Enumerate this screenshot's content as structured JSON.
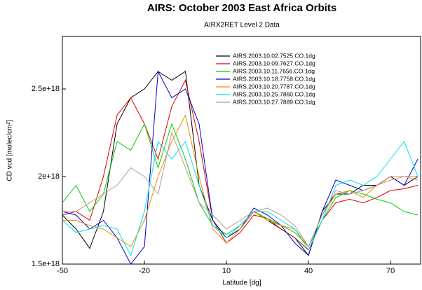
{
  "chart_data": {
    "type": "line",
    "title": "AIRS: October 2003 East Africa Orbits",
    "subtitle": "AIRX2RET Level 2 Data",
    "x_label": "Latitude [dg]",
    "y_label": "CD vcd [molec/cm²]",
    "xlim": [
      -50,
      81
    ],
    "ylim": [
      1.5e+18,
      2.8e+18
    ],
    "xticks": [
      -50,
      -20,
      10,
      40,
      70
    ],
    "yticks": [
      {
        "value": 1.5e+18,
        "label": "1.5e+18"
      },
      {
        "value": 2e+18,
        "label": "2e+18"
      },
      {
        "value": 2.5e+18,
        "label": "2.5e+18"
      }
    ],
    "x": [
      -50,
      -45,
      -40,
      -35,
      -30,
      -25,
      -20,
      -15,
      -10,
      -5,
      0,
      5,
      10,
      15,
      20,
      25,
      30,
      35,
      40,
      45,
      50,
      55,
      60,
      65,
      70,
      75,
      80
    ],
    "series": [
      {
        "name": "AIRS.2003.10.02.7525.CO.1dg",
        "color": "#000000",
        "values": [
          1.78e+18,
          1.7e+18,
          1.59e+18,
          1.8e+18,
          2.3e+18,
          2.45e+18,
          2.5e+18,
          2.6e+18,
          2.55e+18,
          2.6e+18,
          1.95e+18,
          1.75e+18,
          1.65e+18,
          1.7e+18,
          1.8e+18,
          1.75e+18,
          1.7e+18,
          1.65e+18,
          1.55e+18,
          1.8e+18,
          1.9e+18,
          1.9e+18,
          1.95e+18,
          1.95e+18,
          2e+18,
          1.95e+18,
          2e+18
        ]
      },
      {
        "name": "AIRS.2003.10.09.7627.CO.1dg",
        "color": "#e00000",
        "values": [
          1.78e+18,
          1.8e+18,
          1.75e+18,
          2e+18,
          2.35e+18,
          2.45e+18,
          2.3e+18,
          2.1e+18,
          2.4e+18,
          2.55e+18,
          2.2e+18,
          1.75e+18,
          1.62e+18,
          1.68e+18,
          1.78e+18,
          1.76e+18,
          1.7e+18,
          1.65e+18,
          1.58e+18,
          1.75e+18,
          1.85e+18,
          1.87e+18,
          1.85e+18,
          1.88e+18,
          1.92e+18,
          1.93e+18,
          1.95e+18
        ]
      },
      {
        "name": "AIRS.2003.10.11.7656.CO.1dg",
        "color": "#00d000",
        "values": [
          1.85e+18,
          1.95e+18,
          1.8e+18,
          1.9e+18,
          2.2e+18,
          2.15e+18,
          2.3e+18,
          2.05e+18,
          2.3e+18,
          2.1e+18,
          1.85e+18,
          1.72e+18,
          1.67e+18,
          1.72e+18,
          1.8e+18,
          1.76e+18,
          1.72e+18,
          1.68e+18,
          1.6e+18,
          1.75e+18,
          1.88e+18,
          1.92e+18,
          1.9e+18,
          1.87e+18,
          1.85e+18,
          1.8e+18,
          1.78e+18
        ]
      },
      {
        "name": "AIRS.2003.10.18.7758.CO.1dg",
        "color": "#0000d0",
        "values": [
          1.8e+18,
          1.78e+18,
          1.7e+18,
          1.75e+18,
          1.65e+18,
          1.5e+18,
          1.6e+18,
          2.6e+18,
          2.45e+18,
          2.5e+18,
          2.3e+18,
          1.75e+18,
          1.65e+18,
          1.7e+18,
          1.82e+18,
          1.78e+18,
          1.72e+18,
          1.62e+18,
          1.55e+18,
          1.8e+18,
          1.98e+18,
          1.95e+18,
          1.92e+18,
          1.95e+18,
          2e+18,
          1.95e+18,
          2.1e+18
        ]
      },
      {
        "name": "AIRS.2003.10.20.7787.CO.1dg",
        "color": "#f08c00",
        "values": [
          1.75e+18,
          1.75e+18,
          1.72e+18,
          1.7e+18,
          1.65e+18,
          1.6e+18,
          1.75e+18,
          2e+18,
          2.2e+18,
          2.35e+18,
          2e+18,
          1.7e+18,
          1.62e+18,
          1.7e+18,
          1.8e+18,
          1.75e+18,
          1.72e+18,
          1.7e+18,
          1.6e+18,
          1.78e+18,
          1.9e+18,
          1.92e+18,
          1.88e+18,
          1.95e+18,
          2e+18,
          2e+18,
          2e+18
        ]
      },
      {
        "name": "AIRS.2003.10.25.7860.CO.1dg",
        "color": "#00e0e8",
        "values": [
          1.75e+18,
          1.68e+18,
          1.7e+18,
          1.72e+18,
          1.7e+18,
          1.55e+18,
          1.8e+18,
          2.2e+18,
          2.1e+18,
          2.2e+18,
          1.95e+18,
          1.72e+18,
          1.65e+18,
          1.72e+18,
          1.8e+18,
          1.8e+18,
          1.75e+18,
          1.7e+18,
          1.58e+18,
          1.75e+18,
          1.95e+18,
          1.98e+18,
          1.95e+18,
          2e+18,
          2.1e+18,
          2.2e+18,
          2e+18
        ]
      },
      {
        "name": "AIRS.2003.10.27.7889.CO.1dg",
        "color": "#b89a90",
        "values": [
          1.8e+18,
          1.8e+18,
          1.85e+18,
          1.9e+18,
          1.95e+18,
          2.05e+18,
          2e+18,
          1.9e+18,
          2.25e+18,
          2.05e+18,
          1.85e+18,
          1.78e+18,
          1.7e+18,
          1.75e+18,
          1.8e+18,
          1.82e+18,
          1.78e+18,
          1.72e+18,
          1.6e+18,
          1.78e+18,
          1.92e+18,
          1.9e+18,
          1.92e+18,
          1.95e+18,
          1.98e+18,
          2e+18,
          1.98e+18
        ]
      }
    ]
  }
}
